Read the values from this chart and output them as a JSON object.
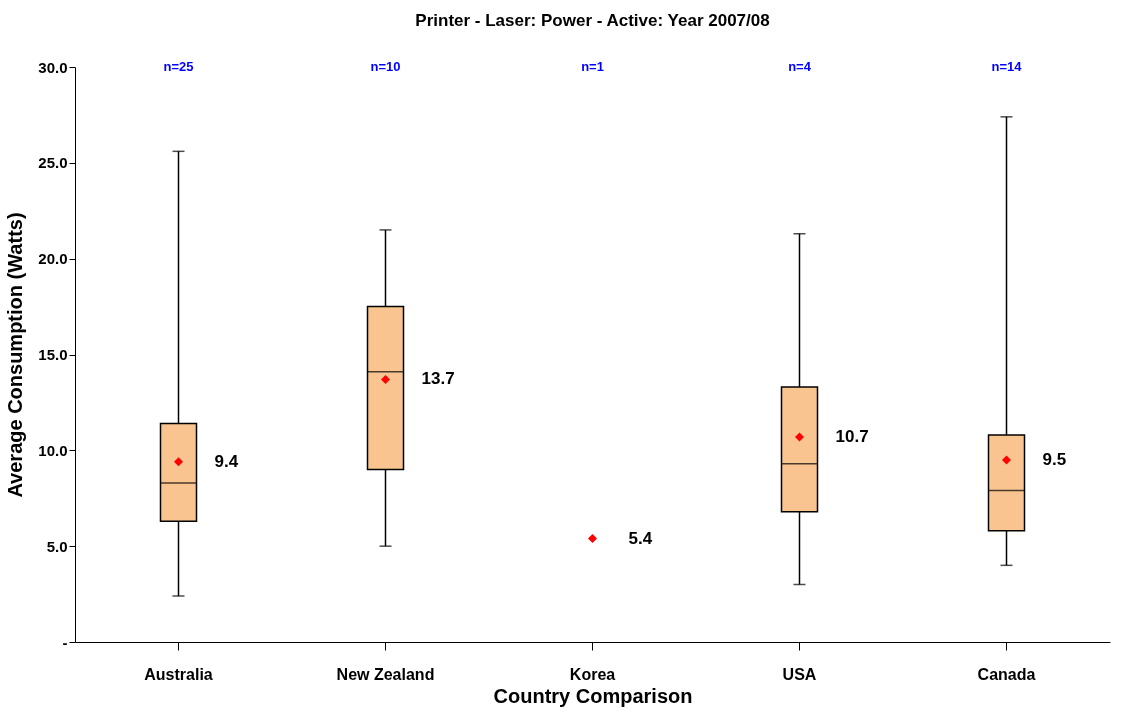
{
  "chart_data": {
    "type": "box",
    "title": "Printer - Laser: Power - Active: Year 2007/08",
    "xlabel": "Country Comparison",
    "ylabel": "Average Consumption (Watts)",
    "categories": [
      "Australia",
      "New Zealand",
      "Korea",
      "USA",
      "Canada"
    ],
    "color": "#f9c490",
    "boxes": [
      {
        "low": 2.4,
        "q1": 6.3,
        "median": 8.3,
        "q3": 11.4,
        "high": 25.6
      },
      {
        "low": 5.0,
        "q1": 9.0,
        "median": 14.1,
        "q3": 17.5,
        "high": 21.5
      },
      null,
      {
        "low": 3.0,
        "q1": 6.8,
        "median": 9.3,
        "q3": 13.3,
        "high": 21.3
      },
      {
        "low": 4.0,
        "q1": 5.8,
        "median": 7.9,
        "q3": 10.8,
        "high": 27.4
      }
    ],
    "series": [
      {
        "type": "scatter",
        "color": "#ff0000",
        "values": [
          9.4,
          13.7,
          5.4,
          10.7,
          9.5
        ]
      }
    ],
    "marker": "diamond",
    "data_labels": true,
    "ylim": [
      0,
      30
    ],
    "yticks": [
      {
        "value": 0,
        "label": "-"
      },
      {
        "value": 5,
        "label": "5.0"
      },
      {
        "value": 10,
        "label": "10.0"
      },
      {
        "value": 15,
        "label": "15.0"
      },
      {
        "value": 20,
        "label": "20.0"
      },
      {
        "value": 25,
        "label": "25.0"
      },
      {
        "value": 30,
        "label": "30.0"
      }
    ],
    "grid": false,
    "annotations": [
      "n=25",
      "n=10",
      "n=1",
      "n=4",
      "n=14"
    ]
  }
}
